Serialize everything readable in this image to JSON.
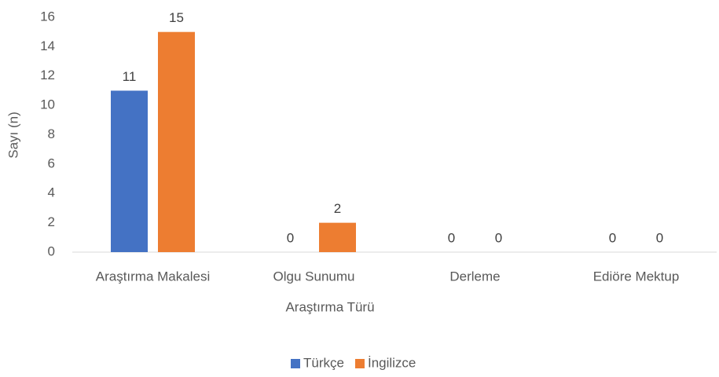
{
  "chart_data": {
    "type": "bar",
    "categories": [
      "Araştırma Makalesi",
      "Olgu Sunumu",
      "Derleme",
      "Ediöre Mektup"
    ],
    "series": [
      {
        "name": "Türkçe",
        "color": "#4472c4",
        "values": [
          11,
          0,
          0,
          0
        ]
      },
      {
        "name": "İngilizce",
        "color": "#ed7d31",
        "values": [
          15,
          2,
          0,
          0
        ]
      }
    ],
    "xlabel": "Araştırma Türü",
    "ylabel": "Sayı (n)",
    "ylim": [
      0,
      16
    ],
    "yticks": [
      0,
      2,
      4,
      6,
      8,
      10,
      12,
      14,
      16
    ],
    "grid": false,
    "legend": "bottom"
  }
}
